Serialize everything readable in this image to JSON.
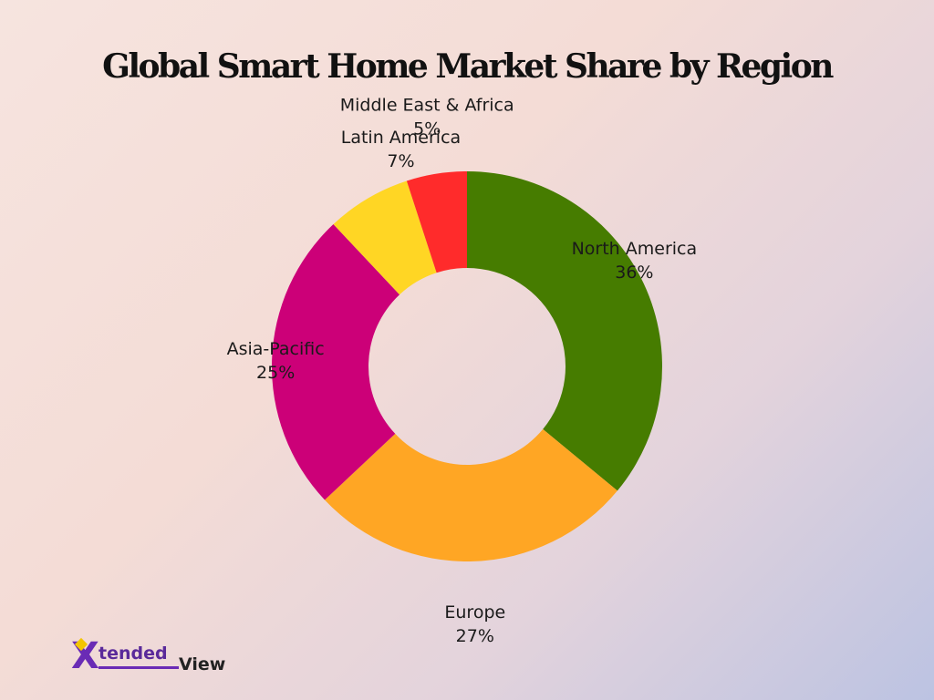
{
  "chart_data": {
    "type": "pie",
    "title": "Global Smart Home Market Share by Region",
    "categories": [
      "North America",
      "Europe",
      "Asia-Pacific",
      "Latin America",
      "Middle East & Africa"
    ],
    "values": [
      36,
      27,
      25,
      7,
      5
    ],
    "value_labels": [
      "36%",
      "27%",
      "25%",
      "7%",
      "5%"
    ],
    "colors": [
      "#467c00",
      "#ffa624",
      "#cc0078",
      "#ffd624",
      "#ff2b2b"
    ],
    "donut": true,
    "legend": "none"
  },
  "brand": {
    "logo_x": "X",
    "logo_part1": "tended",
    "logo_part2": "View"
  }
}
